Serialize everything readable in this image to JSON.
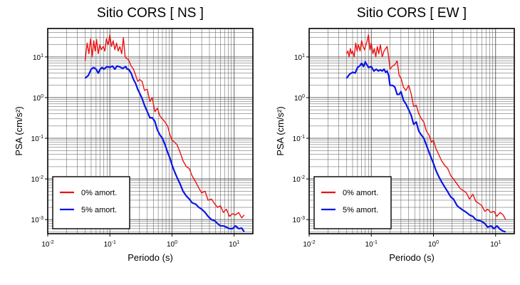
{
  "colors": {
    "series_0": "#ee1111",
    "series_5": "#0a14e6",
    "grid": "#555555",
    "frame": "#000000"
  },
  "chart_data": [
    {
      "type": "line",
      "title": "Sitio CORS [ NS ]",
      "xlabel": "Periodo (s)",
      "ylabel": "PSA (cm/s²)",
      "x_scale": "log",
      "y_scale": "log",
      "xlim": [
        0.01,
        20
      ],
      "ylim": [
        0.00045,
        50
      ],
      "x_ticks": [
        {
          "value": 0.01,
          "base": "10",
          "exp": "-2"
        },
        {
          "value": 0.1,
          "base": "10",
          "exp": "-1"
        },
        {
          "value": 1,
          "base": "10",
          "exp": "0"
        },
        {
          "value": 10,
          "base": "10",
          "exp": "1"
        }
      ],
      "y_ticks": [
        {
          "value": 0.001,
          "base": "10",
          "exp": "-3"
        },
        {
          "value": 0.01,
          "base": "10",
          "exp": "-2"
        },
        {
          "value": 0.1,
          "base": "10",
          "exp": "-1"
        },
        {
          "value": 1,
          "base": "10",
          "exp": "0"
        },
        {
          "value": 10,
          "base": "10",
          "exp": "1"
        }
      ],
      "grid": true,
      "legend_position": "bottom-left",
      "series": [
        {
          "name": "0% amort.",
          "color": "#ee1111",
          "x": [
            0.04,
            0.043,
            0.046,
            0.049,
            0.052,
            0.055,
            0.058,
            0.061,
            0.065,
            0.069,
            0.073,
            0.078,
            0.083,
            0.088,
            0.094,
            0.1,
            0.106,
            0.113,
            0.12,
            0.128,
            0.136,
            0.145,
            0.155,
            0.165,
            0.176,
            0.188,
            0.2,
            0.22,
            0.24,
            0.26,
            0.28,
            0.3,
            0.33,
            0.36,
            0.4,
            0.44,
            0.48,
            0.53,
            0.58,
            0.64,
            0.7,
            0.77,
            0.85,
            0.93,
            1.0,
            1.1,
            1.2,
            1.35,
            1.5,
            1.7,
            1.9,
            2.1,
            2.4,
            2.7,
            3.0,
            3.4,
            3.8,
            4.3,
            4.8,
            5.4,
            6.0,
            6.7,
            7.5,
            8.4,
            9.4,
            10.5,
            11.8,
            13.2,
            14.5
          ],
          "y": [
            8,
            22,
            12,
            28,
            10,
            25,
            14,
            27,
            12,
            20,
            15,
            18,
            14,
            28,
            20,
            35,
            18,
            25,
            15,
            22,
            14,
            18,
            12,
            30,
            10,
            9,
            8.5,
            6,
            5,
            3.5,
            2.5,
            2.8,
            2.5,
            1.5,
            1.6,
            0.8,
            1.0,
            0.45,
            0.55,
            0.35,
            0.3,
            0.25,
            0.2,
            0.12,
            0.09,
            0.08,
            0.07,
            0.045,
            0.028,
            0.02,
            0.018,
            0.012,
            0.0085,
            0.006,
            0.0045,
            0.005,
            0.003,
            0.0032,
            0.0025,
            0.002,
            0.0022,
            0.0015,
            0.0018,
            0.0012,
            0.0014,
            0.0013,
            0.0015,
            0.0011,
            0.0013
          ]
        },
        {
          "name": "5% amort.",
          "color": "#0a14e6",
          "x": [
            0.04,
            0.045,
            0.05,
            0.055,
            0.06,
            0.065,
            0.07,
            0.075,
            0.08,
            0.09,
            0.1,
            0.11,
            0.12,
            0.13,
            0.14,
            0.15,
            0.16,
            0.17,
            0.18,
            0.19,
            0.2,
            0.22,
            0.24,
            0.26,
            0.28,
            0.3,
            0.33,
            0.36,
            0.4,
            0.44,
            0.48,
            0.53,
            0.58,
            0.64,
            0.7,
            0.77,
            0.85,
            0.93,
            1.0,
            1.1,
            1.2,
            1.35,
            1.5,
            1.7,
            1.9,
            2.1,
            2.4,
            2.7,
            3.0,
            3.4,
            3.8,
            4.3,
            4.8,
            5.4,
            6.0,
            6.7,
            7.5,
            8.4,
            9.4,
            10.5,
            11.8,
            13.2,
            14.5
          ],
          "y": [
            3,
            3.5,
            5,
            5.5,
            5,
            4,
            5,
            5.5,
            5,
            5.8,
            5.5,
            6,
            5,
            6,
            5.8,
            5.5,
            5.2,
            5.5,
            5.8,
            5,
            5,
            4,
            2.8,
            2.2,
            1.6,
            1.3,
            0.95,
            0.65,
            0.45,
            0.32,
            0.32,
            0.26,
            0.16,
            0.12,
            0.1,
            0.07,
            0.045,
            0.032,
            0.022,
            0.015,
            0.011,
            0.0075,
            0.005,
            0.0038,
            0.0032,
            0.0026,
            0.0024,
            0.002,
            0.0018,
            0.0015,
            0.0012,
            0.001,
            0.00095,
            0.0008,
            0.0007,
            0.0007,
            0.00065,
            0.0006,
            0.0006,
            0.0007,
            0.0006,
            0.00062,
            0.0005
          ]
        }
      ]
    },
    {
      "type": "line",
      "title": "Sitio CORS [ EW ]",
      "xlabel": "Periodo (s)",
      "ylabel": "PSA (cm/s²)",
      "x_scale": "log",
      "y_scale": "log",
      "xlim": [
        0.01,
        20
      ],
      "ylim": [
        0.00045,
        50
      ],
      "x_ticks": [
        {
          "value": 0.01,
          "base": "10",
          "exp": "-2"
        },
        {
          "value": 0.1,
          "base": "10",
          "exp": "-1"
        },
        {
          "value": 1,
          "base": "10",
          "exp": "0"
        },
        {
          "value": 10,
          "base": "10",
          "exp": "1"
        }
      ],
      "y_ticks": [
        {
          "value": 0.001,
          "base": "10",
          "exp": "-3"
        },
        {
          "value": 0.01,
          "base": "10",
          "exp": "-2"
        },
        {
          "value": 0.1,
          "base": "10",
          "exp": "-1"
        },
        {
          "value": 1,
          "base": "10",
          "exp": "0"
        },
        {
          "value": 10,
          "base": "10",
          "exp": "1"
        }
      ],
      "grid": true,
      "legend_position": "bottom-left",
      "series": [
        {
          "name": "0% amort.",
          "color": "#ee1111",
          "x": [
            0.04,
            0.042,
            0.044,
            0.046,
            0.048,
            0.05,
            0.053,
            0.056,
            0.059,
            0.062,
            0.066,
            0.07,
            0.074,
            0.078,
            0.082,
            0.086,
            0.09,
            0.095,
            0.1,
            0.106,
            0.112,
            0.118,
            0.125,
            0.132,
            0.14,
            0.15,
            0.16,
            0.17,
            0.18,
            0.19,
            0.2,
            0.22,
            0.24,
            0.26,
            0.28,
            0.3,
            0.33,
            0.36,
            0.4,
            0.44,
            0.48,
            0.53,
            0.58,
            0.64,
            0.7,
            0.77,
            0.85,
            0.93,
            1.0,
            1.1,
            1.2,
            1.35,
            1.5,
            1.7,
            1.9,
            2.1,
            2.4,
            2.7,
            3.0,
            3.4,
            3.8,
            4.3,
            4.8,
            5.4,
            6.0,
            6.7,
            7.5,
            8.4,
            9.4,
            10.5,
            11.8,
            13.2,
            14.5
          ],
          "y": [
            12,
            14,
            10,
            16,
            12,
            14,
            10,
            22,
            14,
            20,
            14,
            25,
            18,
            15,
            20,
            25,
            35,
            15,
            22,
            12,
            16,
            10,
            18,
            12,
            20,
            10,
            14,
            16,
            18,
            10,
            5,
            6,
            6.5,
            8,
            3.5,
            3,
            1.8,
            1.5,
            2.0,
            1.2,
            0.6,
            0.65,
            0.4,
            0.3,
            0.25,
            0.15,
            0.12,
            0.08,
            0.09,
            0.055,
            0.042,
            0.028,
            0.022,
            0.018,
            0.012,
            0.01,
            0.0075,
            0.0058,
            0.0052,
            0.0045,
            0.0032,
            0.0042,
            0.0028,
            0.0025,
            0.0022,
            0.0016,
            0.0018,
            0.0015,
            0.0016,
            0.0012,
            0.0015,
            0.0013,
            0.001
          ]
        },
        {
          "name": "5% amort.",
          "color": "#0a14e6",
          "x": [
            0.04,
            0.045,
            0.05,
            0.055,
            0.06,
            0.065,
            0.07,
            0.075,
            0.08,
            0.09,
            0.1,
            0.11,
            0.12,
            0.13,
            0.14,
            0.15,
            0.16,
            0.17,
            0.18,
            0.19,
            0.2,
            0.22,
            0.24,
            0.26,
            0.28,
            0.3,
            0.33,
            0.36,
            0.4,
            0.44,
            0.48,
            0.53,
            0.58,
            0.64,
            0.7,
            0.77,
            0.85,
            0.93,
            1.0,
            1.1,
            1.2,
            1.35,
            1.5,
            1.7,
            1.9,
            2.1,
            2.4,
            2.7,
            3.0,
            3.4,
            3.8,
            4.3,
            4.8,
            5.4,
            6.0,
            6.7,
            7.5,
            8.4,
            9.4,
            10.5,
            11.8,
            13.2,
            14.5
          ],
          "y": [
            3,
            3.8,
            4.2,
            4,
            5.5,
            6,
            7,
            5.8,
            7.5,
            5.5,
            5.8,
            4.5,
            5,
            4.5,
            4.8,
            4.5,
            5,
            4.2,
            4.5,
            3.5,
            2,
            2,
            1.8,
            1.2,
            1.2,
            1.4,
            0.85,
            0.7,
            0.5,
            0.36,
            0.22,
            0.25,
            0.15,
            0.12,
            0.1,
            0.068,
            0.045,
            0.032,
            0.024,
            0.016,
            0.012,
            0.0085,
            0.0065,
            0.0048,
            0.0036,
            0.0032,
            0.0022,
            0.0019,
            0.0017,
            0.0015,
            0.0013,
            0.0012,
            0.001,
            0.00095,
            0.0009,
            0.0008,
            0.00065,
            0.0007,
            0.0006,
            0.0007,
            0.00058,
            0.00052,
            0.0005
          ]
        }
      ]
    }
  ]
}
